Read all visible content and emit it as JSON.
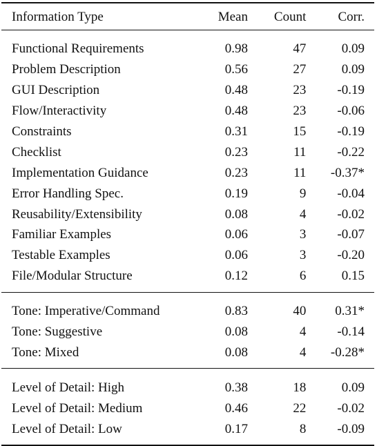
{
  "columns": {
    "type": "Information Type",
    "mean": "Mean",
    "count": "Count",
    "corr": "Corr."
  },
  "groups": [
    {
      "rows": [
        {
          "type": "Functional Requirements",
          "mean": "0.98",
          "count": "47",
          "corr": "0.09"
        },
        {
          "type": "Problem Description",
          "mean": "0.56",
          "count": "27",
          "corr": "0.09"
        },
        {
          "type": "GUI Description",
          "mean": "0.48",
          "count": "23",
          "corr": "-0.19"
        },
        {
          "type": "Flow/Interactivity",
          "mean": "0.48",
          "count": "23",
          "corr": "-0.06"
        },
        {
          "type": "Constraints",
          "mean": "0.31",
          "count": "15",
          "corr": "-0.19"
        },
        {
          "type": "Checklist",
          "mean": "0.23",
          "count": "11",
          "corr": "-0.22"
        },
        {
          "type": "Implementation Guidance",
          "mean": "0.23",
          "count": "11",
          "corr": "-0.37*"
        },
        {
          "type": "Error Handling Spec.",
          "mean": "0.19",
          "count": "9",
          "corr": "-0.04"
        },
        {
          "type": "Reusability/Extensibility",
          "mean": "0.08",
          "count": "4",
          "corr": "-0.02"
        },
        {
          "type": "Familiar Examples",
          "mean": "0.06",
          "count": "3",
          "corr": "-0.07"
        },
        {
          "type": "Testable Examples",
          "mean": "0.06",
          "count": "3",
          "corr": "-0.20"
        },
        {
          "type": "File/Modular Structure",
          "mean": "0.12",
          "count": "6",
          "corr": "0.15"
        }
      ]
    },
    {
      "rows": [
        {
          "type": "Tone: Imperative/Command",
          "mean": "0.83",
          "count": "40",
          "corr": "0.31*"
        },
        {
          "type": "Tone: Suggestive",
          "mean": "0.08",
          "count": "4",
          "corr": "-0.14"
        },
        {
          "type": "Tone: Mixed",
          "mean": "0.08",
          "count": "4",
          "corr": "-0.28*"
        }
      ]
    },
    {
      "rows": [
        {
          "type": "Level of Detail: High",
          "mean": "0.38",
          "count": "18",
          "corr": "0.09"
        },
        {
          "type": "Level of Detail: Medium",
          "mean": "0.46",
          "count": "22",
          "corr": "-0.02"
        },
        {
          "type": "Level of Detail: Low",
          "mean": "0.17",
          "count": "8",
          "corr": "-0.09"
        }
      ]
    }
  ]
}
